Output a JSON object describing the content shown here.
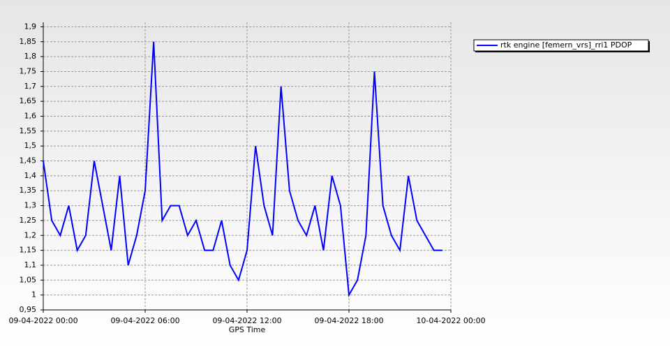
{
  "chart_data": {
    "type": "line",
    "xlabel": "GPS Time",
    "x": [
      "09-04-2022 00:00",
      "09-04-2022 00:30",
      "09-04-2022 01:00",
      "09-04-2022 01:30",
      "09-04-2022 02:00",
      "09-04-2022 02:30",
      "09-04-2022 03:00",
      "09-04-2022 03:30",
      "09-04-2022 04:00",
      "09-04-2022 04:30",
      "09-04-2022 05:00",
      "09-04-2022 05:30",
      "09-04-2022 06:00",
      "09-04-2022 06:30",
      "09-04-2022 07:00",
      "09-04-2022 07:30",
      "09-04-2022 08:00",
      "09-04-2022 08:30",
      "09-04-2022 09:00",
      "09-04-2022 09:30",
      "09-04-2022 10:00",
      "09-04-2022 10:30",
      "09-04-2022 11:00",
      "09-04-2022 11:30",
      "09-04-2022 12:00",
      "09-04-2022 12:30",
      "09-04-2022 13:00",
      "09-04-2022 13:30",
      "09-04-2022 14:00",
      "09-04-2022 14:30",
      "09-04-2022 15:00",
      "09-04-2022 15:30",
      "09-04-2022 16:00",
      "09-04-2022 16:30",
      "09-04-2022 17:00",
      "09-04-2022 17:30",
      "09-04-2022 18:00",
      "09-04-2022 18:30",
      "09-04-2022 19:00",
      "09-04-2022 19:30",
      "09-04-2022 20:00",
      "09-04-2022 20:30",
      "09-04-2022 21:00",
      "09-04-2022 21:30",
      "09-04-2022 22:00",
      "09-04-2022 22:30",
      "09-04-2022 23:00",
      "09-04-2022 23:30"
    ],
    "series": [
      {
        "name": "rtk engine [femern_vrs]_rri1 PDOP",
        "color": "#0000ff",
        "values": [
          1.45,
          1.25,
          1.2,
          1.3,
          1.15,
          1.2,
          1.45,
          1.3,
          1.15,
          1.4,
          1.1,
          1.2,
          1.35,
          1.85,
          1.25,
          1.3,
          1.3,
          1.2,
          1.25,
          1.15,
          1.15,
          1.25,
          1.1,
          1.05,
          1.15,
          1.5,
          1.3,
          1.2,
          1.7,
          1.35,
          1.25,
          1.2,
          1.3,
          1.15,
          1.4,
          1.3,
          1.0,
          1.05,
          1.2,
          1.75,
          1.3,
          1.2,
          1.15,
          1.4,
          1.25,
          1.2,
          1.15,
          1.15
        ]
      }
    ],
    "xlim": [
      "09-04-2022 00:00",
      "10-04-2022 00:00"
    ],
    "xticks": [
      "09-04-2022 00:00",
      "09-04-2022 06:00",
      "09-04-2022 12:00",
      "09-04-2022 18:00",
      "10-04-2022 00:00"
    ],
    "ylim": [
      0.95,
      1.915
    ],
    "yticks": [
      {
        "value": 0.95,
        "label": "0,95"
      },
      {
        "value": 1,
        "label": "1"
      },
      {
        "value": 1.05,
        "label": "1,05"
      },
      {
        "value": 1.1,
        "label": "1,1"
      },
      {
        "value": 1.15,
        "label": "1,15"
      },
      {
        "value": 1.2,
        "label": "1,2"
      },
      {
        "value": 1.25,
        "label": "1,25"
      },
      {
        "value": 1.3,
        "label": "1,3"
      },
      {
        "value": 1.35,
        "label": "1,35"
      },
      {
        "value": 1.4,
        "label": "1,4"
      },
      {
        "value": 1.45,
        "label": "1,45"
      },
      {
        "value": 1.5,
        "label": "1,5"
      },
      {
        "value": 1.55,
        "label": "1,55"
      },
      {
        "value": 1.6,
        "label": "1,6"
      },
      {
        "value": 1.65,
        "label": "1,65"
      },
      {
        "value": 1.7,
        "label": "1,7"
      },
      {
        "value": 1.75,
        "label": "1,75"
      },
      {
        "value": 1.8,
        "label": "1,8"
      },
      {
        "value": 1.85,
        "label": "1,85"
      },
      {
        "value": 1.9,
        "label": "1,9"
      }
    ],
    "grid": true,
    "legend": "top-right"
  }
}
